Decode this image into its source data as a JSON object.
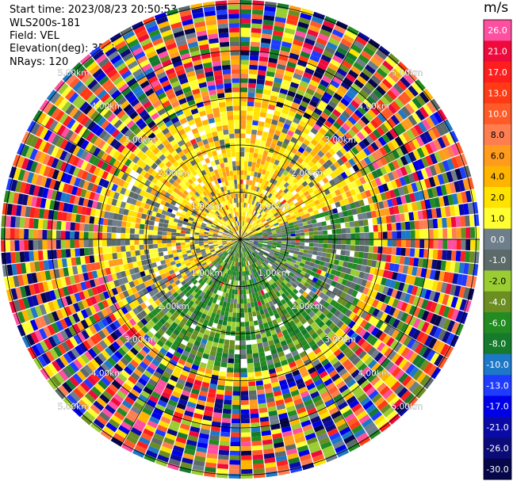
{
  "header": {
    "start_time": "Start time: 2023/08/23 20:50:53",
    "instrument": "WLS200s-181",
    "field": "Field: VEL",
    "elevation": "Elevation(deg): 35.30",
    "nrays": "NRays: 120"
  },
  "chart_data": {
    "type": "heatmap",
    "projection": "polar-ppi",
    "nrays": 120,
    "range_rings_km": [
      1,
      2,
      3,
      4,
      5
    ],
    "range_ring_labels": [
      "1.00km",
      "2.00km",
      "3.00km",
      "4.00km",
      "5.00km"
    ],
    "colorbar": {
      "unit": "m/s",
      "ticks": [
        "26.0",
        "21.0",
        "17.0",
        "13.0",
        "10.0",
        "8.0",
        "6.0",
        "4.0",
        "2.0",
        "1.0",
        "0.0",
        "-1.0",
        "-2.0",
        "-4.0",
        "-6.0",
        "-8.0",
        "-10.0",
        "-13.0",
        "-17.0",
        "-21.0",
        "-26.0",
        "-30.0"
      ],
      "colors": [
        "#ff4fa0",
        "#ee0a3c",
        "#ff1e1e",
        "#ff3a14",
        "#ff5a28",
        "#ff7e50",
        "#ff9c1e",
        "#ffb400",
        "#ffe200",
        "#ffff32",
        "#6e7e8a",
        "#5c6a6a",
        "#9acd32",
        "#6b8e23",
        "#228b22",
        "#157a2c",
        "#1e78c8",
        "#1e3cff",
        "#0000e8",
        "#0a0aa6",
        "#0b0b7a",
        "#06064a"
      ]
    }
  }
}
